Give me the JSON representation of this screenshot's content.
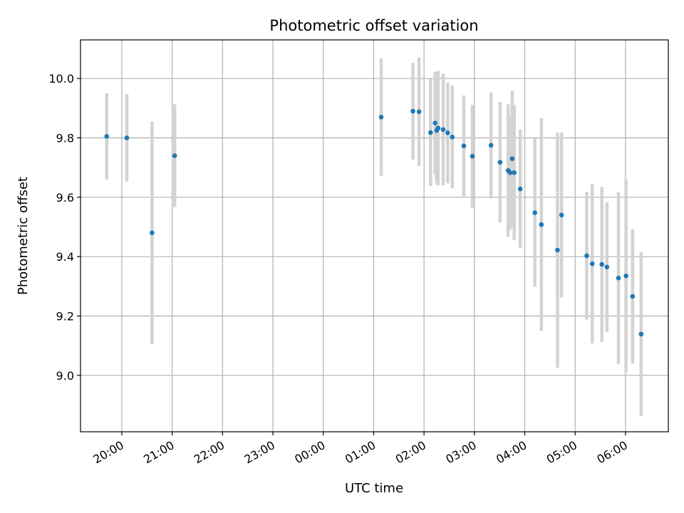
{
  "chart_data": {
    "type": "scatter",
    "title": "Photometric offset variation",
    "xlabel": "UTC time",
    "ylabel": "Photometric offset",
    "x_unit": "UTC time (hours past midnight; negative = previous evening)",
    "xlim": [
      -4.82,
      6.85
    ],
    "ylim": [
      8.81,
      10.13
    ],
    "x_ticks": [
      -4,
      -3,
      -2,
      -1,
      0,
      1,
      2,
      3,
      4,
      5,
      6
    ],
    "x_tick_labels": [
      "20:00",
      "21:00",
      "22:00",
      "23:00",
      "00:00",
      "01:00",
      "02:00",
      "03:00",
      "04:00",
      "05:00",
      "06:00"
    ],
    "y_ticks": [
      9.0,
      9.2,
      9.4,
      9.6,
      9.8,
      10.0
    ],
    "y_tick_labels": [
      "9.0",
      "9.2",
      "9.4",
      "9.6",
      "9.8",
      "10.0"
    ],
    "grid": true,
    "point_color": "#1f77b4",
    "errorbar_color": "#d3d3d3",
    "points": [
      {
        "x": -4.3,
        "y": 9.805,
        "err": 0.145
      },
      {
        "x": -3.9,
        "y": 9.8,
        "err": 0.148
      },
      {
        "x": -3.4,
        "y": 9.48,
        "err": 0.375
      },
      {
        "x": -2.95,
        "y": 9.74,
        "err": 0.173
      },
      {
        "x": 1.15,
        "y": 9.87,
        "err": 0.198
      },
      {
        "x": 1.78,
        "y": 9.89,
        "err": 0.163
      },
      {
        "x": 1.9,
        "y": 9.888,
        "err": 0.183
      },
      {
        "x": 2.13,
        "y": 9.818,
        "err": 0.18
      },
      {
        "x": 2.22,
        "y": 9.85,
        "err": 0.173
      },
      {
        "x": 2.25,
        "y": 9.825,
        "err": 0.178
      },
      {
        "x": 2.28,
        "y": 9.833,
        "err": 0.193
      },
      {
        "x": 2.38,
        "y": 9.828,
        "err": 0.188
      },
      {
        "x": 2.47,
        "y": 9.817,
        "err": 0.17
      },
      {
        "x": 2.56,
        "y": 9.803,
        "err": 0.173
      },
      {
        "x": 2.79,
        "y": 9.773,
        "err": 0.17
      },
      {
        "x": 2.96,
        "y": 9.738,
        "err": 0.173
      },
      {
        "x": 3.33,
        "y": 9.775,
        "err": 0.178
      },
      {
        "x": 3.51,
        "y": 9.718,
        "err": 0.203
      },
      {
        "x": 3.67,
        "y": 9.69,
        "err": 0.223
      },
      {
        "x": 3.71,
        "y": 9.683,
        "err": 0.193
      },
      {
        "x": 3.75,
        "y": 9.73,
        "err": 0.228
      },
      {
        "x": 3.79,
        "y": 9.683,
        "err": 0.228
      },
      {
        "x": 3.91,
        "y": 9.628,
        "err": 0.2
      },
      {
        "x": 4.2,
        "y": 9.548,
        "err": 0.25
      },
      {
        "x": 4.33,
        "y": 9.508,
        "err": 0.358
      },
      {
        "x": 4.65,
        "y": 9.422,
        "err": 0.396
      },
      {
        "x": 4.73,
        "y": 9.54,
        "err": 0.278
      },
      {
        "x": 5.23,
        "y": 9.403,
        "err": 0.215
      },
      {
        "x": 5.34,
        "y": 9.376,
        "err": 0.268
      },
      {
        "x": 5.53,
        "y": 9.374,
        "err": 0.261
      },
      {
        "x": 5.63,
        "y": 9.365,
        "err": 0.218
      },
      {
        "x": 5.86,
        "y": 9.328,
        "err": 0.29
      },
      {
        "x": 6.01,
        "y": 9.335,
        "err": 0.325
      },
      {
        "x": 6.14,
        "y": 9.266,
        "err": 0.226
      },
      {
        "x": 6.31,
        "y": 9.139,
        "err": 0.276
      }
    ]
  }
}
